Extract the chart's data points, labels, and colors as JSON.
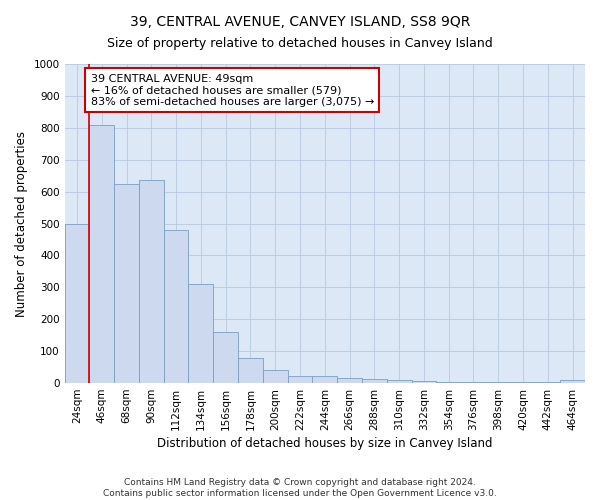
{
  "title": "39, CENTRAL AVENUE, CANVEY ISLAND, SS8 9QR",
  "subtitle": "Size of property relative to detached houses in Canvey Island",
  "xlabel": "Distribution of detached houses by size in Canvey Island",
  "ylabel": "Number of detached properties",
  "categories": [
    "24sqm",
    "46sqm",
    "68sqm",
    "90sqm",
    "112sqm",
    "134sqm",
    "156sqm",
    "178sqm",
    "200sqm",
    "222sqm",
    "244sqm",
    "266sqm",
    "288sqm",
    "310sqm",
    "332sqm",
    "354sqm",
    "376sqm",
    "398sqm",
    "420sqm",
    "442sqm",
    "464sqm"
  ],
  "values": [
    500,
    810,
    625,
    635,
    480,
    310,
    160,
    80,
    42,
    22,
    22,
    15,
    12,
    10,
    5,
    4,
    3,
    3,
    2,
    2,
    10
  ],
  "bar_color": "#ccd9ee",
  "bar_edge_color": "#7a9fc2",
  "property_line_color": "#cc0000",
  "annotation_line1": "39 CENTRAL AVENUE: 49sqm",
  "annotation_line2": "← 16% of detached houses are smaller (579)",
  "annotation_line3": "83% of semi-detached houses are larger (3,075) →",
  "annotation_box_color": "white",
  "annotation_box_edge": "#cc0000",
  "ylim": [
    0,
    1000
  ],
  "yticks": [
    0,
    100,
    200,
    300,
    400,
    500,
    600,
    700,
    800,
    900,
    1000
  ],
  "footer1": "Contains HM Land Registry data © Crown copyright and database right 2024.",
  "footer2": "Contains public sector information licensed under the Open Government Licence v3.0.",
  "grid_color": "#b8c9e0",
  "background_color": "#dce8f5",
  "title_fontsize": 10,
  "subtitle_fontsize": 9,
  "axis_label_fontsize": 8.5,
  "tick_fontsize": 7.5,
  "annotation_fontsize": 8,
  "footer_fontsize": 6.5
}
